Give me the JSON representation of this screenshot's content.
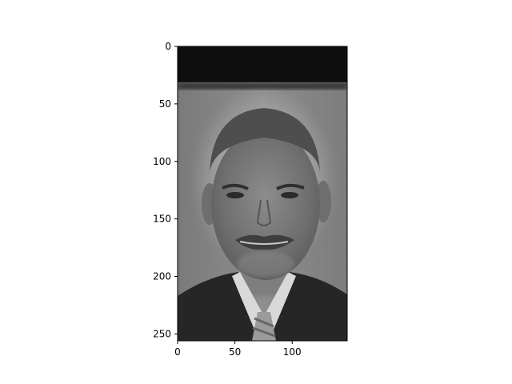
{
  "chart_data": {
    "type": "image",
    "title": "",
    "xlabel": "",
    "ylabel": "",
    "image_shape": [
      256,
      148
    ],
    "xlim": [
      0,
      148
    ],
    "ylim": [
      256,
      0
    ],
    "x_ticks": [
      0,
      50,
      100
    ],
    "y_ticks": [
      0,
      50,
      100,
      150,
      200,
      250
    ],
    "x_tick_labels": [
      "0",
      "50",
      "100"
    ],
    "y_tick_labels": [
      "0",
      "50",
      "100",
      "150",
      "200",
      "250"
    ],
    "image_content": "grayscale-portrait-face",
    "colormap": "gray",
    "grid": false
  }
}
